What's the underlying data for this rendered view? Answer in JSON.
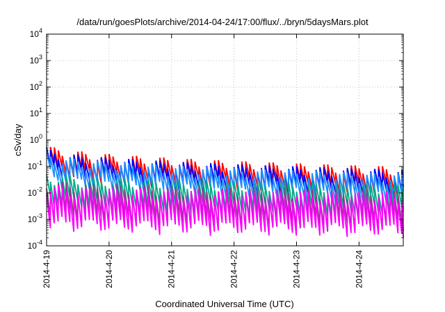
{
  "chart_data": {
    "type": "line",
    "title": "/data/run/goesPlots/archive/2014-04-24/17:00/flux/../bryn/5daysMars.plot",
    "xlabel": "Coordinated Universal Time (UTC)",
    "ylabel": "cSv/day",
    "y_scale": "log",
    "ylim": [
      0.0001,
      10000
    ],
    "xlim": [
      "2014-04-19 00:00",
      "2014-04-24 17:00"
    ],
    "grid": true,
    "x_ticks": [
      "2014-4-19",
      "2014-4-20",
      "2014-4-21",
      "2014-4-22",
      "2014-4-23",
      "2014-4-24"
    ],
    "y_ticks": [
      {
        "base": "10",
        "exp": "-4"
      },
      {
        "base": "10",
        "exp": "-3"
      },
      {
        "base": "10",
        "exp": "-2"
      },
      {
        "base": "10",
        "exp": "-1"
      },
      {
        "base": "10",
        "exp": "0"
      },
      {
        "base": "10",
        "exp": "1"
      },
      {
        "base": "10",
        "exp": "2"
      },
      {
        "base": "10",
        "exp": "3"
      },
      {
        "base": "10",
        "exp": "4"
      }
    ],
    "cycle_hours": 1.5,
    "series": [
      {
        "color": "#ff0000",
        "peak_start": 0.7,
        "peak_end": 0.09,
        "trough_ratio": 0.22
      },
      {
        "color": "#0000ff",
        "peak_start": 0.5,
        "peak_end": 0.07,
        "trough_ratio": 0.22
      },
      {
        "color": "#1e90ff",
        "peak_start": 0.35,
        "peak_end": 0.05,
        "trough_ratio": 0.2
      },
      {
        "color": "#00aa88",
        "peak_start": 0.06,
        "peak_end": 0.02,
        "trough_ratio": 0.15
      },
      {
        "color": "#8b3a8b",
        "peak_start": 0.03,
        "peak_end": 0.012,
        "trough_ratio": 0.08
      },
      {
        "color": "#ff00ff",
        "peak_start": 0.02,
        "peak_end": 0.01,
        "trough_ratio": 0.06
      }
    ]
  }
}
